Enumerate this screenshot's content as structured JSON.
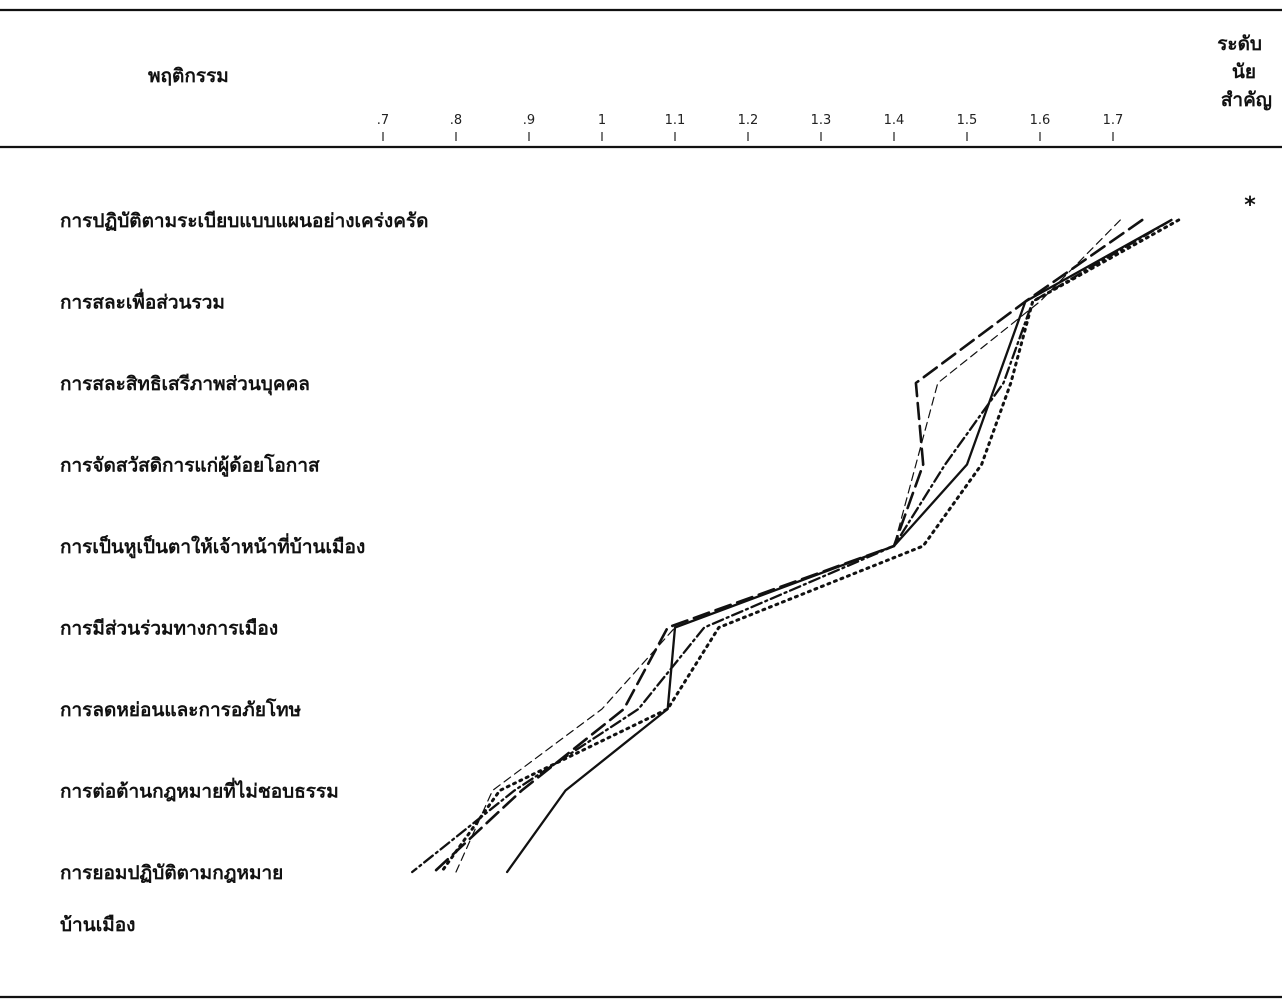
{
  "header": {
    "behavior_label": "พฤติกรรม",
    "significance_label_lines": [
      "ระดับ",
      "นัย",
      "สำคัญ"
    ]
  },
  "chart_data": {
    "type": "line",
    "orientation": "horizontal-values-vertical-categories",
    "x_ticks": [
      {
        "value": 0.7,
        "label": ".7"
      },
      {
        "value": 0.8,
        "label": ".8"
      },
      {
        "value": 0.9,
        "label": ".9"
      },
      {
        "value": 1.0,
        "label": "1"
      },
      {
        "value": 1.1,
        "label": "1.1"
      },
      {
        "value": 1.2,
        "label": "1.2"
      },
      {
        "value": 1.3,
        "label": "1.3"
      },
      {
        "value": 1.4,
        "label": "1.4"
      },
      {
        "value": 1.5,
        "label": "1.5"
      },
      {
        "value": 1.6,
        "label": "1.6"
      },
      {
        "value": 1.7,
        "label": "1.7"
      }
    ],
    "xlim": [
      0.7,
      1.7
    ],
    "categories": [
      "การปฏิบัติตามระเบียบแบบแผนอย่างเคร่งครัด",
      "การสละเพื่อส่วนรวม",
      "การสละสิทธิเสรีภาพส่วนบุคคล",
      "การจัดสวัสดิการแก่ผู้ด้อยโอกาส",
      "การเป็นหูเป็นตาให้เจ้าหน้าที่บ้านเมือง",
      "การมีส่วนร่วมทางการเมือง",
      "การลดหย่อนและการอภัยโทษ",
      "การต่อต้านกฎหมายที่ไม่ชอบธรรม",
      [
        "การยอมปฏิบัติตามกฎหมาย",
        "บ้านเมือง"
      ]
    ],
    "series": [
      {
        "style": "solid",
        "values": [
          1.78,
          1.58,
          1.54,
          1.5,
          1.4,
          1.1,
          1.09,
          0.95,
          0.87
        ]
      },
      {
        "style": "long-dash",
        "values": [
          1.74,
          1.58,
          1.43,
          1.44,
          1.4,
          1.09,
          1.03,
          0.89,
          0.77
        ]
      },
      {
        "style": "dotted",
        "values": [
          1.79,
          1.59,
          1.56,
          1.52,
          1.44,
          1.16,
          1.09,
          0.86,
          0.78
        ]
      },
      {
        "style": "dash-dot",
        "values": [
          1.78,
          1.59,
          1.55,
          1.47,
          1.4,
          1.14,
          1.05,
          0.88,
          0.74
        ]
      },
      {
        "style": "thin-dash",
        "values": [
          1.71,
          1.6,
          1.46,
          1.43,
          1.4,
          1.1,
          1.0,
          0.85,
          0.8
        ]
      }
    ],
    "significance_marks": [
      "*",
      "",
      "",
      "",
      "",
      "",
      "",
      "",
      ""
    ],
    "grid": false,
    "legend": "none"
  }
}
